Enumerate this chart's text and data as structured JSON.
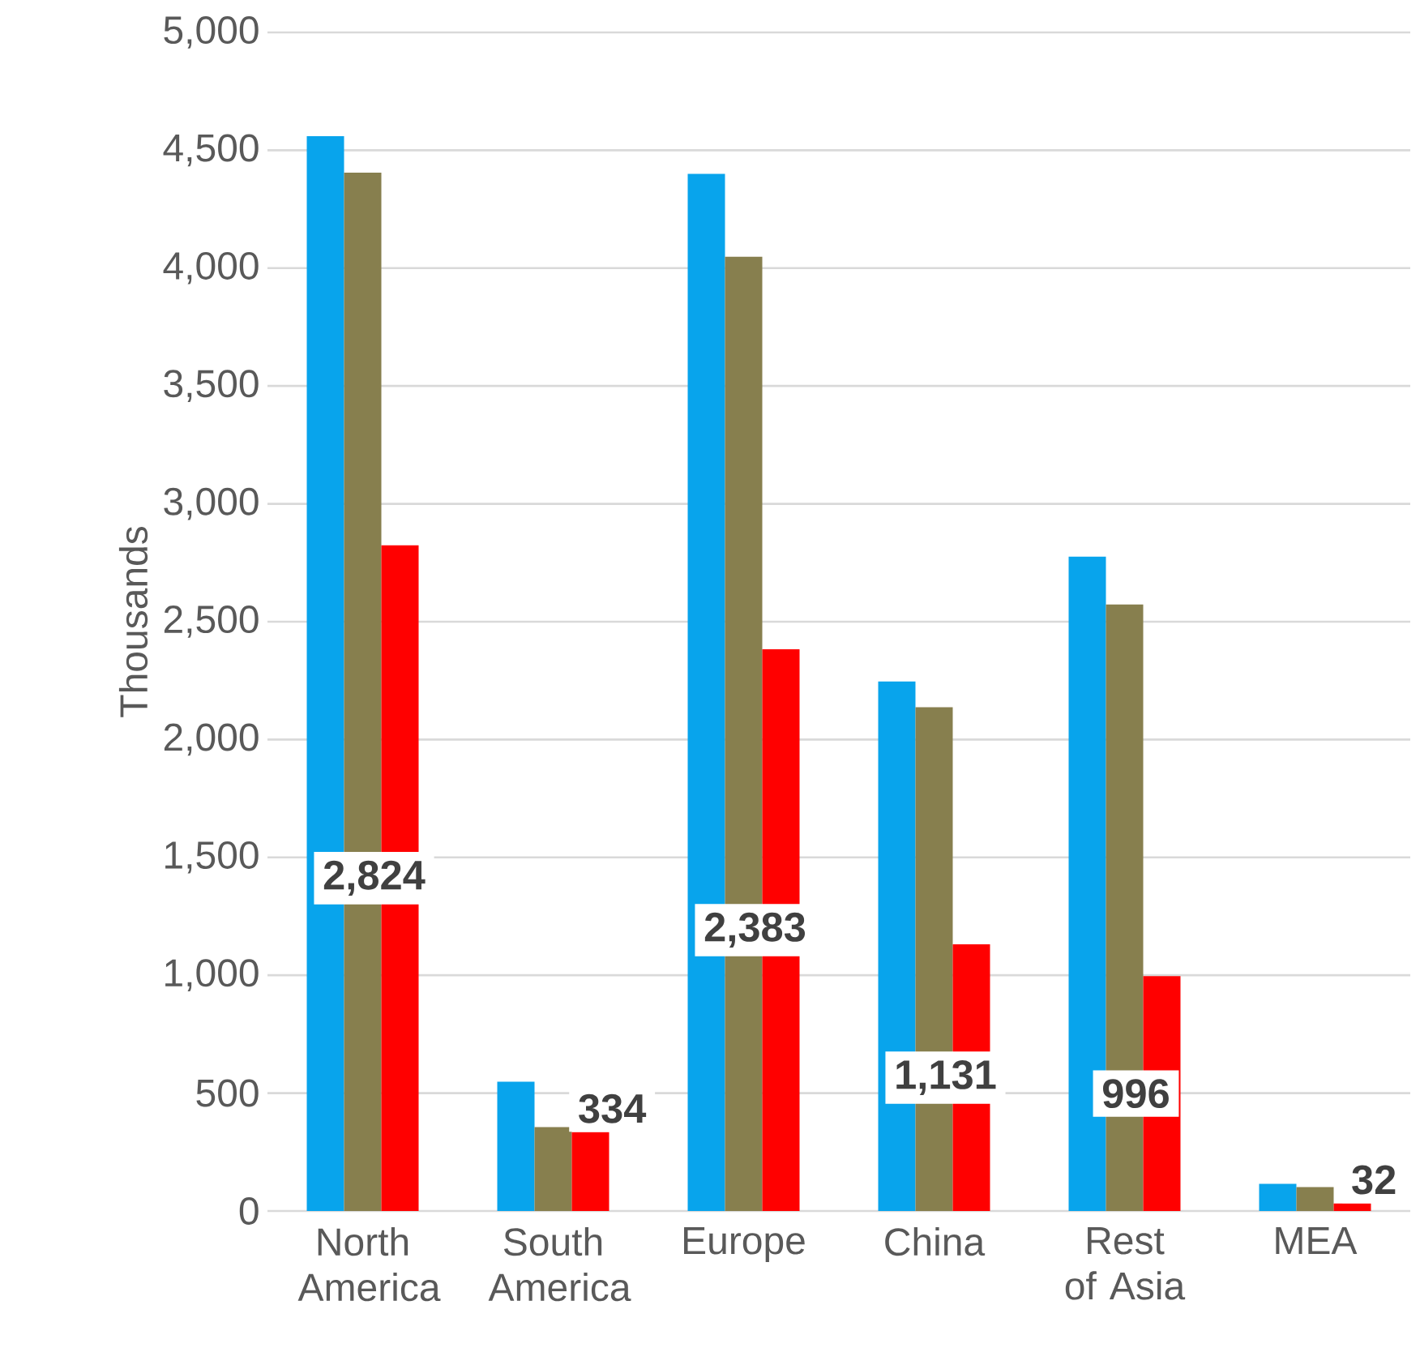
{
  "chart_data": {
    "type": "bar",
    "ylabel": "Thousands",
    "categories": [
      "North America",
      "South America",
      "Europe",
      "China",
      "Rest of Asia",
      "MEA"
    ],
    "series": [
      {
        "color": "#08a4ec",
        "values": [
          4560,
          548,
          4400,
          2246,
          2776,
          115
        ]
      },
      {
        "color": "#877f4e",
        "values": [
          4405,
          356,
          4048,
          2137,
          2573,
          101
        ]
      },
      {
        "color": "#ff0000",
        "values": [
          2824,
          334,
          2383,
          1131,
          996,
          32
        ],
        "value_labels": [
          "2,824",
          "334",
          "2,383",
          "1,131",
          "996",
          "32"
        ]
      }
    ],
    "ylim": [
      0,
      5000
    ],
    "yticks": [
      0,
      500,
      {
        "value": 1000,
        "label": "1,000"
      },
      {
        "value": 1500,
        "label": "1,500"
      },
      {
        "value": 2000,
        "label": "2,000"
      },
      {
        "value": 2500,
        "label": "2,500"
      },
      {
        "value": 3000,
        "label": "3,000"
      },
      {
        "value": 3500,
        "label": "3,500"
      },
      {
        "value": 4000,
        "label": "4,000"
      },
      {
        "value": 4500,
        "label": "4,500"
      },
      {
        "value": 5000,
        "label": "5,000"
      }
    ],
    "grid": "y"
  }
}
